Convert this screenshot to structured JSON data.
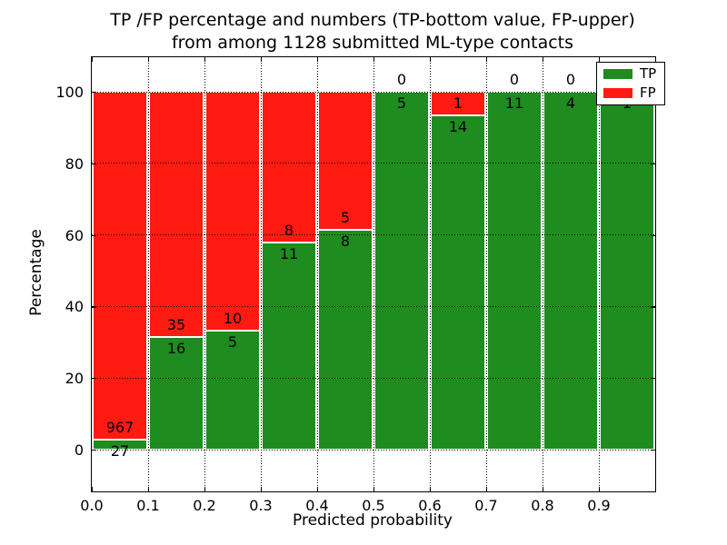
{
  "title": {
    "line1": "TP /FP percentage and numbers (TP-bottom value, FP-upper)",
    "line2": "from among 1128 submitted ML-type contacts"
  },
  "colors": {
    "tp_green": "#1e8c1e",
    "fp_red": "#ff1a12",
    "bar_edge": "#ffffff",
    "axis": "#000000",
    "background": "#ffffff"
  },
  "chart_data": {
    "type": "bar",
    "stacked": true,
    "normalized_to_percent": true,
    "title": "TP /FP percentage and numbers (TP-bottom value, FP-upper)\nfrom among 1128 submitted ML-type contacts",
    "xlabel": "Predicted probability",
    "ylabel": "Percentage",
    "total_contacts": 1128,
    "bins": [
      "0.0-0.1",
      "0.1-0.2",
      "0.2-0.3",
      "0.3-0.4",
      "0.4-0.5",
      "0.5-0.6",
      "0.6-0.7",
      "0.7-0.8",
      "0.8-0.9",
      "0.9-1.0"
    ],
    "series": [
      {
        "name": "TP",
        "color": "#1e8c1e",
        "counts": [
          27,
          16,
          5,
          11,
          8,
          5,
          14,
          11,
          4,
          1
        ]
      },
      {
        "name": "FP",
        "color": "#ff1a12",
        "counts": [
          967,
          35,
          10,
          8,
          5,
          0,
          1,
          0,
          0,
          0
        ]
      }
    ],
    "tp_percent": [
      2.7,
      31.4,
      33.3,
      57.9,
      61.5,
      100.0,
      93.3,
      100.0,
      100.0,
      100.0
    ],
    "x_tick_labels": [
      "0.0",
      "0.1",
      "0.2",
      "0.3",
      "0.4",
      "0.5",
      "0.6",
      "0.7",
      "0.8",
      "0.9"
    ],
    "y_tick_values": [
      0,
      20,
      40,
      60,
      80,
      100
    ],
    "xlim": [
      0.0,
      1.0
    ],
    "ylim": [
      -11.7,
      109.6
    ],
    "grid": "dotted black, both axes",
    "legend": {
      "position": "upper right",
      "entries": [
        {
          "label": "TP",
          "color": "#1e8c1e"
        },
        {
          "label": "FP",
          "color": "#ff1a12"
        }
      ]
    }
  }
}
